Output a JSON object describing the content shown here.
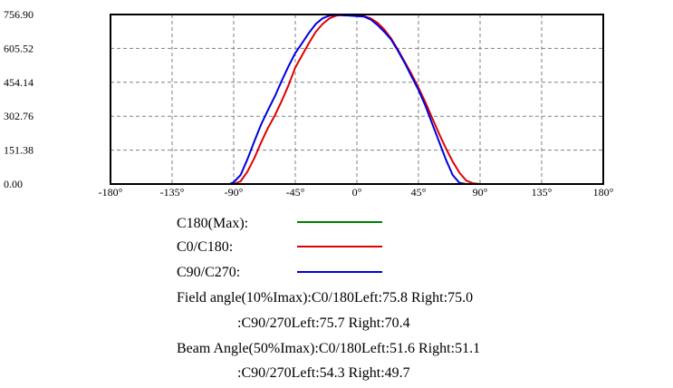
{
  "chart_data": {
    "type": "line",
    "x_ticks": [
      "-180°",
      "-135°",
      "-90°",
      "-45°",
      "0°",
      "45°",
      "90°",
      "135°",
      "180°"
    ],
    "y_ticks": [
      "0.00",
      "151.38",
      "302.76",
      "454.14",
      "605.52",
      "756.90"
    ],
    "xlim": [
      -180,
      180
    ],
    "ylim": [
      0,
      756.9
    ],
    "grid": true,
    "series": [
      {
        "name": "C180(Max):",
        "color": "#008000",
        "x": [],
        "y": []
      },
      {
        "name": "C0/C180:",
        "color": "#e00000",
        "x": [
          -180,
          -90,
          -85,
          -80,
          -75,
          -70,
          -65,
          -60,
          -55,
          -50,
          -45,
          -40,
          -35,
          -30,
          -25,
          -20,
          -15,
          -10,
          -5,
          0,
          5,
          10,
          15,
          20,
          25,
          30,
          35,
          40,
          45,
          50,
          55,
          60,
          65,
          70,
          75,
          80,
          85,
          90,
          180
        ],
        "y": [
          0,
          0,
          12,
          55,
          115,
          185,
          250,
          305,
          370,
          440,
          520,
          575,
          630,
          680,
          715,
          740,
          752,
          756,
          755,
          754,
          750,
          740,
          720,
          690,
          650,
          600,
          545,
          490,
          430,
          365,
          295,
          225,
          160,
          100,
          50,
          15,
          3,
          0,
          0
        ]
      },
      {
        "name": "C90/C270:",
        "color": "#0000e0",
        "x": [
          -180,
          -93,
          -90,
          -85,
          -80,
          -75,
          -70,
          -65,
          -60,
          -55,
          -50,
          -45,
          -40,
          -35,
          -30,
          -25,
          -20,
          -15,
          -10,
          -5,
          0,
          5,
          10,
          15,
          20,
          25,
          30,
          35,
          40,
          45,
          50,
          55,
          60,
          65,
          70,
          75,
          80,
          180
        ],
        "y": [
          0,
          0,
          8,
          40,
          110,
          190,
          265,
          330,
          390,
          460,
          525,
          585,
          630,
          675,
          715,
          740,
          752,
          756,
          753,
          752,
          750,
          748,
          735,
          710,
          680,
          645,
          595,
          540,
          480,
          420,
          350,
          270,
          190,
          110,
          40,
          5,
          0,
          0
        ]
      }
    ]
  },
  "info": {
    "field_line1": "Field angle(10%Imax):C0/180Left:75.8 Right:75.0",
    "field_line2": ":C90/270Left:75.7 Right:70.4",
    "beam_line1": "Beam Angle(50%Imax):C0/180Left:51.6 Right:51.1",
    "beam_line2": ":C90/270Left:54.3 Right:49.7"
  }
}
